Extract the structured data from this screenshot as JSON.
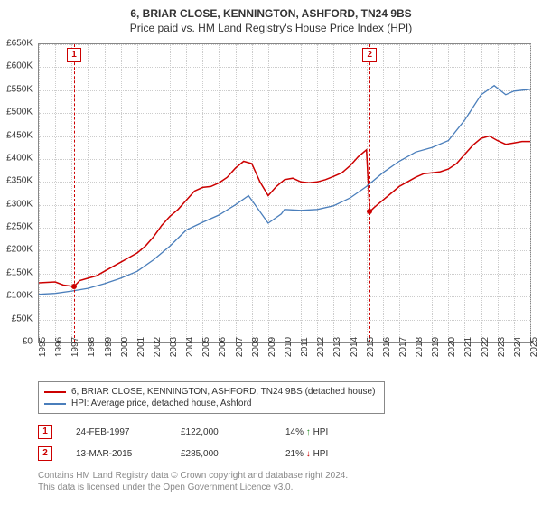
{
  "title": {
    "line1": "6, BRIAR CLOSE, KENNINGTON, ASHFORD, TN24 9BS",
    "line2": "Price paid vs. HM Land Registry's House Price Index (HPI)"
  },
  "chart": {
    "type": "line",
    "background_color": "#ffffff",
    "grid_color": "#cccccc",
    "border_color": "#888888",
    "ylim": [
      0,
      650000
    ],
    "ytick_step": 50000,
    "y_ticks": [
      "£0",
      "£50K",
      "£100K",
      "£150K",
      "£200K",
      "£250K",
      "£300K",
      "£350K",
      "£400K",
      "£450K",
      "£500K",
      "£550K",
      "£600K",
      "£650K"
    ],
    "x_ticks": [
      "1995",
      "1996",
      "1997",
      "1998",
      "1999",
      "2000",
      "2001",
      "2002",
      "2003",
      "2004",
      "2005",
      "2006",
      "2007",
      "2008",
      "2009",
      "2010",
      "2011",
      "2012",
      "2013",
      "2014",
      "2015",
      "2016",
      "2017",
      "2018",
      "2019",
      "2020",
      "2021",
      "2022",
      "2023",
      "2024",
      "2025"
    ],
    "title_fontsize": 12,
    "label_fontsize": 10,
    "series": [
      {
        "name": "6, BRIAR CLOSE, KENNINGTON, ASHFORD, TN24 9BS (detached house)",
        "color": "#cc0000",
        "width": 1.5,
        "points": [
          [
            1995,
            130000
          ],
          [
            1996,
            132000
          ],
          [
            1996.5,
            125000
          ],
          [
            1997.15,
            122000
          ],
          [
            1997.5,
            135000
          ],
          [
            1998,
            140000
          ],
          [
            1998.5,
            145000
          ],
          [
            1999,
            155000
          ],
          [
            1999.5,
            165000
          ],
          [
            2000,
            175000
          ],
          [
            2000.5,
            185000
          ],
          [
            2001,
            195000
          ],
          [
            2001.5,
            210000
          ],
          [
            2002,
            230000
          ],
          [
            2002.5,
            255000
          ],
          [
            2003,
            275000
          ],
          [
            2003.5,
            290000
          ],
          [
            2004,
            310000
          ],
          [
            2004.5,
            330000
          ],
          [
            2005,
            338000
          ],
          [
            2005.5,
            340000
          ],
          [
            2006,
            348000
          ],
          [
            2006.5,
            360000
          ],
          [
            2007,
            380000
          ],
          [
            2007.5,
            395000
          ],
          [
            2008,
            390000
          ],
          [
            2008.5,
            350000
          ],
          [
            2009,
            320000
          ],
          [
            2009.5,
            340000
          ],
          [
            2010,
            355000
          ],
          [
            2010.5,
            358000
          ],
          [
            2011,
            350000
          ],
          [
            2011.5,
            348000
          ],
          [
            2012,
            350000
          ],
          [
            2012.5,
            355000
          ],
          [
            2013,
            362000
          ],
          [
            2013.5,
            370000
          ],
          [
            2014,
            385000
          ],
          [
            2014.5,
            405000
          ],
          [
            2015,
            420000
          ],
          [
            2015.2,
            285000
          ],
          [
            2015.5,
            295000
          ],
          [
            2016,
            310000
          ],
          [
            2016.5,
            325000
          ],
          [
            2017,
            340000
          ],
          [
            2017.5,
            350000
          ],
          [
            2018,
            360000
          ],
          [
            2018.5,
            368000
          ],
          [
            2019,
            370000
          ],
          [
            2019.5,
            372000
          ],
          [
            2020,
            378000
          ],
          [
            2020.5,
            390000
          ],
          [
            2021,
            410000
          ],
          [
            2021.5,
            430000
          ],
          [
            2022,
            445000
          ],
          [
            2022.5,
            450000
          ],
          [
            2023,
            440000
          ],
          [
            2023.5,
            432000
          ],
          [
            2024,
            435000
          ],
          [
            2024.5,
            438000
          ],
          [
            2025,
            438000
          ]
        ]
      },
      {
        "name": "HPI: Average price, detached house, Ashford",
        "color": "#4a7ebb",
        "width": 1.3,
        "points": [
          [
            1995,
            105000
          ],
          [
            1996,
            107000
          ],
          [
            1997,
            112000
          ],
          [
            1998,
            118000
          ],
          [
            1999,
            128000
          ],
          [
            2000,
            140000
          ],
          [
            2001,
            155000
          ],
          [
            2002,
            180000
          ],
          [
            2003,
            210000
          ],
          [
            2004,
            245000
          ],
          [
            2005,
            262000
          ],
          [
            2006,
            278000
          ],
          [
            2007,
            300000
          ],
          [
            2007.8,
            320000
          ],
          [
            2008.5,
            285000
          ],
          [
            2009,
            260000
          ],
          [
            2009.8,
            280000
          ],
          [
            2010,
            290000
          ],
          [
            2011,
            288000
          ],
          [
            2012,
            290000
          ],
          [
            2013,
            298000
          ],
          [
            2014,
            315000
          ],
          [
            2015,
            340000
          ],
          [
            2016,
            370000
          ],
          [
            2017,
            395000
          ],
          [
            2018,
            415000
          ],
          [
            2019,
            425000
          ],
          [
            2020,
            440000
          ],
          [
            2021,
            485000
          ],
          [
            2022,
            540000
          ],
          [
            2022.8,
            560000
          ],
          [
            2023.5,
            540000
          ],
          [
            2024,
            548000
          ],
          [
            2025,
            552000
          ]
        ]
      }
    ],
    "markers": [
      {
        "id": "1",
        "x": 1997.15,
        "y": 122000
      },
      {
        "id": "2",
        "x": 2015.2,
        "y": 285000
      }
    ]
  },
  "legend": {
    "items": [
      {
        "color": "#cc0000",
        "label": "6, BRIAR CLOSE, KENNINGTON, ASHFORD, TN24 9BS (detached house)"
      },
      {
        "color": "#4a7ebb",
        "label": "HPI: Average price, detached house, Ashford"
      }
    ]
  },
  "events": [
    {
      "id": "1",
      "date": "24-FEB-1997",
      "price": "£122,000",
      "pct": "14%",
      "arrow": "↑",
      "suffix": "HPI",
      "arrow_color": "#228b22"
    },
    {
      "id": "2",
      "date": "13-MAR-2015",
      "price": "£285,000",
      "pct": "21%",
      "arrow": "↓",
      "suffix": "HPI",
      "arrow_color": "#cc0000"
    }
  ],
  "footer": {
    "line1": "Contains HM Land Registry data © Crown copyright and database right 2024.",
    "line2": "This data is licensed under the Open Government Licence v3.0."
  }
}
